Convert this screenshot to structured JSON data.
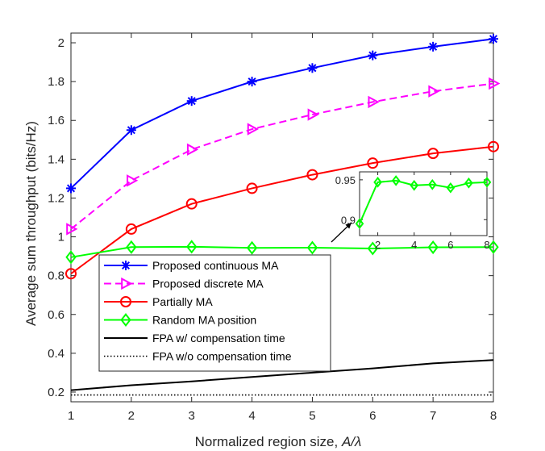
{
  "chart_data": [
    {
      "type": "line",
      "xlabel_prefix": "Normalized region size, ",
      "xlabel_symbol": "A/λ",
      "ylabel": "Average sum throughput (bits/Hz)",
      "xlim": [
        1,
        8
      ],
      "ylim": [
        0.15,
        2.05
      ],
      "xticks": [
        1,
        2,
        3,
        4,
        5,
        6,
        7,
        8
      ],
      "yticks": [
        0.2,
        0.4,
        0.6,
        0.8,
        1,
        1.2,
        1.4,
        1.6,
        1.8,
        2
      ],
      "ytick_labels": [
        "0.2",
        "0.4",
        "0.6",
        "0.8",
        "1",
        "1.2",
        "1.4",
        "1.6",
        "1.8",
        "2"
      ],
      "x": [
        1,
        2,
        3,
        4,
        5,
        6,
        7,
        8
      ],
      "legend_position": "bottom-left",
      "series": [
        {
          "name": "Proposed continuous MA",
          "color": "#0000ff",
          "dash": "solid",
          "marker": "asterisk",
          "values": [
            1.25,
            1.55,
            1.7,
            1.8,
            1.87,
            1.935,
            1.98,
            2.02
          ]
        },
        {
          "name": "Proposed discrete MA",
          "color": "#ff00ff",
          "dash": "dashed",
          "marker": "triangle-right",
          "values": [
            1.04,
            1.29,
            1.45,
            1.555,
            1.63,
            1.695,
            1.75,
            1.79
          ]
        },
        {
          "name": "Partially MA",
          "color": "#ff0000",
          "dash": "solid",
          "marker": "circle",
          "values": [
            0.81,
            1.04,
            1.17,
            1.25,
            1.32,
            1.38,
            1.43,
            1.465
          ]
        },
        {
          "name": "Random MA position",
          "color": "#00ff00",
          "dash": "solid",
          "marker": "diamond",
          "values": [
            0.895,
            0.947,
            0.949,
            0.943,
            0.944,
            0.94,
            0.946,
            0.947
          ]
        },
        {
          "name": "FPA w/ compensation time",
          "color": "#000000",
          "dash": "solid",
          "marker": "none",
          "values": [
            0.21,
            0.235,
            0.255,
            0.278,
            0.3,
            0.322,
            0.348,
            0.365
          ]
        },
        {
          "name": "FPA w/o compensation time",
          "color": "#000000",
          "dash": "dotted",
          "marker": "none",
          "values": [
            0.185,
            0.185,
            0.185,
            0.185,
            0.185,
            0.185,
            0.185,
            0.185
          ]
        }
      ]
    },
    {
      "type": "line",
      "role": "inset",
      "xlim": [
        1,
        8
      ],
      "ylim": [
        0.88,
        0.96
      ],
      "xticks": [
        2,
        4,
        6,
        8
      ],
      "yticks": [
        0.9,
        0.95
      ],
      "ytick_labels": [
        "0.9",
        "0.95"
      ],
      "x": [
        1,
        2,
        3,
        4,
        5,
        6,
        7,
        8
      ],
      "series": [
        {
          "name": "Random MA position",
          "color": "#00ff00",
          "dash": "solid",
          "marker": "diamond",
          "values": [
            0.895,
            0.947,
            0.949,
            0.943,
            0.944,
            0.94,
            0.946,
            0.947
          ]
        }
      ]
    }
  ]
}
